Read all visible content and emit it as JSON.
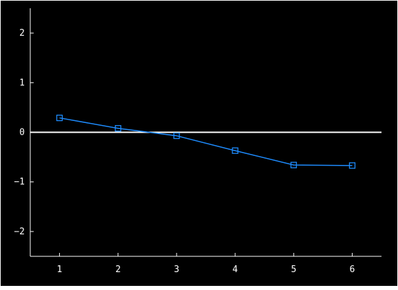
{
  "chart_data": {
    "type": "line",
    "title": "",
    "xlabel": "",
    "ylabel": "",
    "x": [
      1,
      2,
      3,
      4,
      5,
      6
    ],
    "series": [
      {
        "values": [
          0.29,
          0.08,
          -0.07,
          -0.37,
          -0.66,
          -0.67
        ],
        "color": "#1e8cff",
        "marker": "square"
      }
    ],
    "xlim": [
      0.5,
      6.5
    ],
    "ylim": [
      -2.5,
      2.5
    ],
    "xticks": [
      1,
      2,
      3,
      4,
      5,
      6
    ],
    "yticks": [
      -2,
      -1,
      0,
      1,
      2
    ],
    "xtick_labels": [
      "1",
      "2",
      "3",
      "4",
      "5",
      "6"
    ],
    "ytick_labels": [
      "−2",
      "−1",
      "0",
      "1",
      "2"
    ],
    "zero_line": true,
    "grid": false,
    "legend": "none",
    "colors": {
      "background": "#000000",
      "frame": "#ffffff",
      "axis": "#ffffff",
      "zero_line": "#ffffff",
      "series": "#1e8cff",
      "text": "#ffffff"
    }
  }
}
